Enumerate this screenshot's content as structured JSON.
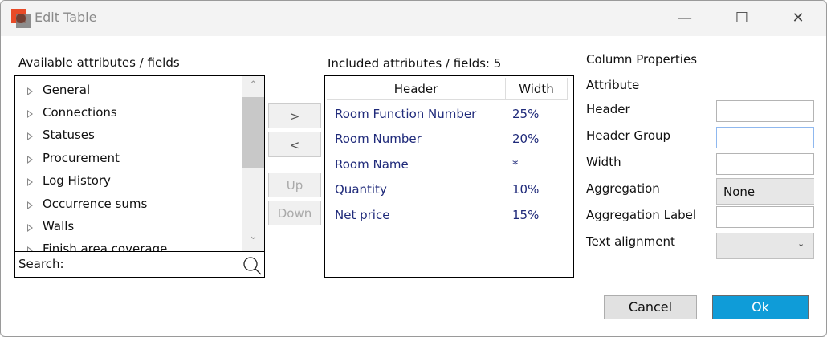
{
  "window": {
    "title": "Edit Table",
    "icon": "app-logo",
    "controls": [
      "minimize-icon",
      "maximize-icon",
      "close-icon"
    ]
  },
  "available": {
    "label": "Available attributes / fields",
    "items": [
      "General",
      "Connections",
      "Statuses",
      "Procurement",
      "Log History",
      "Occurrence sums",
      "Walls",
      "Finish area coverage"
    ],
    "search_label": "Search:"
  },
  "transfer": {
    "add": ">",
    "remove": "<",
    "up": "Up",
    "down": "Down"
  },
  "included": {
    "label": "Included attributes / fields: 5",
    "headers": [
      "Header",
      "Width"
    ],
    "rows": [
      {
        "header": "Room Function Number",
        "width": "25%"
      },
      {
        "header": "Room Number",
        "width": "20%"
      },
      {
        "header": "Room Name",
        "width": "*"
      },
      {
        "header": "Quantity",
        "width": "10%"
      },
      {
        "header": "Net price",
        "width": "15%"
      }
    ]
  },
  "properties": {
    "title": "Column Properties",
    "attribute": "Attribute",
    "header": "Header",
    "header_group": "Header Group",
    "width": "Width",
    "aggregation": "Aggregation",
    "aggregation_value": "None",
    "aggregation_label": "Aggregation Label",
    "text_alignment": "Text alignment"
  },
  "footer": {
    "cancel": "Cancel",
    "ok": "Ok"
  },
  "colors": {
    "accent": "#0f9cd8",
    "logo": "#e84a27",
    "row_text": "#1f2a7a"
  }
}
